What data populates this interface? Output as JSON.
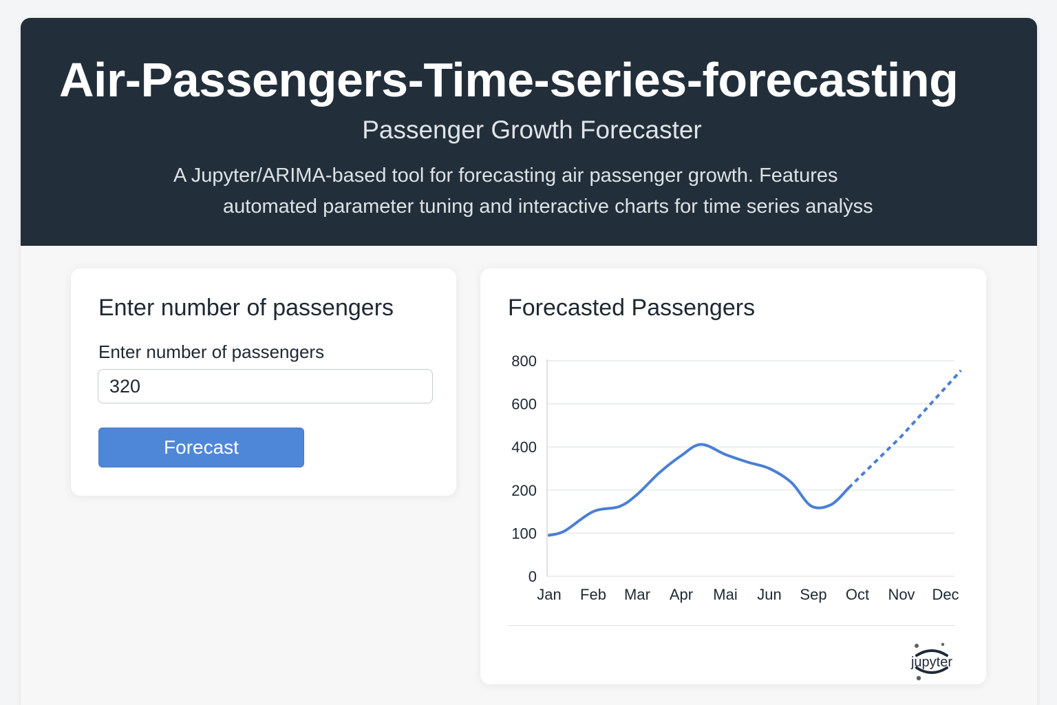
{
  "header": {
    "title": "Air-Passengers-Time-series-forecasting",
    "subtitle": "Passenger Growth Forecaster",
    "description_line1": "A Jupyter/ARIMA-based tool for forecasting air passenger growth. Features",
    "description_line2": "automated parameter tuning and interactive charts for time series analỳss"
  },
  "input_card": {
    "title": "Enter number of passengers",
    "field_label": "Enter number of passengers",
    "field_value": "320",
    "button_label": "Forecast"
  },
  "chart_card": {
    "title": "Forecasted Passengers",
    "logo_text": "jupyter",
    "logo_icon": "jupyter-logo-icon"
  },
  "colors": {
    "header_bg": "#222f3b",
    "accent": "#4f87d8",
    "line": "#4a7fd4"
  },
  "chart_data": {
    "type": "line",
    "title": "Forecasted Passengers",
    "xlabel": "",
    "ylabel": "",
    "categories": [
      "Jan",
      "Feb",
      "Mar",
      "Apr",
      "Mai",
      "Jun",
      "Sep",
      "Oct",
      "Nov",
      "Dec"
    ],
    "y_ticks": [
      "0",
      "100",
      "200",
      "400",
      "600",
      "800"
    ],
    "ylim": [
      0,
      800
    ],
    "grid": true,
    "series": [
      {
        "style": "solid",
        "points": [
          {
            "x": 0.0,
            "y": 95
          },
          {
            "x": 0.35,
            "y": 105
          },
          {
            "x": 1.0,
            "y": 150
          },
          {
            "x": 1.6,
            "y": 162
          },
          {
            "x": 2.0,
            "y": 190
          },
          {
            "x": 2.5,
            "y": 280
          },
          {
            "x": 3.0,
            "y": 360
          },
          {
            "x": 3.45,
            "y": 412
          },
          {
            "x": 4.0,
            "y": 365
          },
          {
            "x": 4.5,
            "y": 330
          },
          {
            "x": 5.0,
            "y": 300
          },
          {
            "x": 5.5,
            "y": 235
          },
          {
            "x": 5.95,
            "y": 163
          },
          {
            "x": 6.4,
            "y": 166
          },
          {
            "x": 6.8,
            "y": 210
          }
        ]
      },
      {
        "style": "dashed",
        "points": [
          {
            "x": 6.8,
            "y": 210
          },
          {
            "x": 8.0,
            "y": 450
          },
          {
            "x": 9.35,
            "y": 755
          }
        ]
      }
    ]
  }
}
